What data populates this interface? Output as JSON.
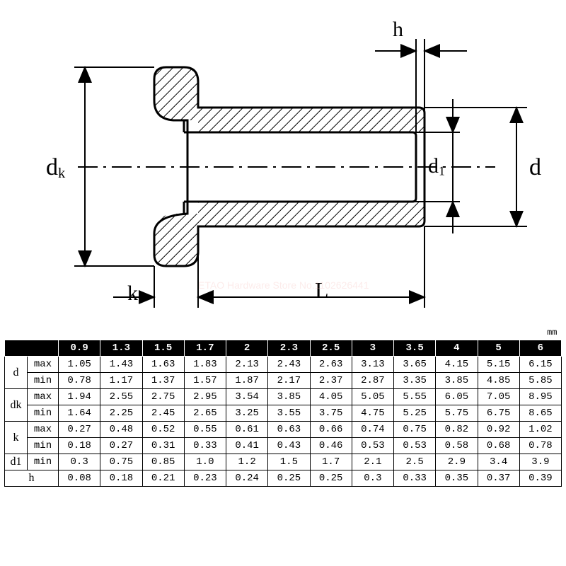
{
  "diagram": {
    "watermark_text": "ETAO Hardware Store No.1102626441",
    "watermark_color": "#f4b4b0",
    "stroke": "#000000",
    "stroke_width": 3,
    "labels": {
      "h": "h",
      "dk": "dₖ",
      "d1": "d₁",
      "d": "d",
      "k": "k",
      "L": "L"
    }
  },
  "table": {
    "unit": "mm",
    "header_sizes": [
      "0.9",
      "1.3",
      "1.5",
      "1.7",
      "2",
      "2.3",
      "2.5",
      "3",
      "3.5",
      "4",
      "5",
      "6"
    ],
    "groups": [
      {
        "name": "d",
        "rows": [
          {
            "sub": "max",
            "vals": [
              "1.05",
              "1.43",
              "1.63",
              "1.83",
              "2.13",
              "2.43",
              "2.63",
              "3.13",
              "3.65",
              "4.15",
              "5.15",
              "6.15"
            ]
          },
          {
            "sub": "min",
            "vals": [
              "0.78",
              "1.17",
              "1.37",
              "1.57",
              "1.87",
              "2.17",
              "2.37",
              "2.87",
              "3.35",
              "3.85",
              "4.85",
              "5.85"
            ]
          }
        ]
      },
      {
        "name": "dk",
        "rows": [
          {
            "sub": "max",
            "vals": [
              "1.94",
              "2.55",
              "2.75",
              "2.95",
              "3.54",
              "3.85",
              "4.05",
              "5.05",
              "5.55",
              "6.05",
              "7.05",
              "8.95"
            ]
          },
          {
            "sub": "min",
            "vals": [
              "1.64",
              "2.25",
              "2.45",
              "2.65",
              "3.25",
              "3.55",
              "3.75",
              "4.75",
              "5.25",
              "5.75",
              "6.75",
              "8.65"
            ]
          }
        ]
      },
      {
        "name": "k",
        "rows": [
          {
            "sub": "max",
            "vals": [
              "0.27",
              "0.48",
              "0.52",
              "0.55",
              "0.61",
              "0.63",
              "0.66",
              "0.74",
              "0.75",
              "0.82",
              "0.92",
              "1.02"
            ]
          },
          {
            "sub": "min",
            "vals": [
              "0.18",
              "0.27",
              "0.31",
              "0.33",
              "0.41",
              "0.43",
              "0.46",
              "0.53",
              "0.53",
              "0.58",
              "0.68",
              "0.78"
            ]
          }
        ]
      },
      {
        "name": "d1",
        "rows": [
          {
            "sub": "min",
            "vals": [
              "0.3",
              "0.75",
              "0.85",
              "1.0",
              "1.2",
              "1.5",
              "1.7",
              "2.1",
              "2.5",
              "2.9",
              "3.4",
              "3.9"
            ]
          }
        ]
      },
      {
        "name": "h",
        "rows": [
          {
            "sub": "",
            "vals": [
              "0.08",
              "0.18",
              "0.21",
              "0.23",
              "0.24",
              "0.25",
              "0.25",
              "0.3",
              "0.33",
              "0.35",
              "0.37",
              "0.39"
            ]
          }
        ]
      }
    ],
    "colors": {
      "header_bg": "#000000",
      "header_fg": "#ffffff",
      "cell_bg": "#ffffff",
      "cell_fg": "#000000",
      "border": "#000000"
    },
    "font_family": "Courier New",
    "font_size_pt": 11
  }
}
